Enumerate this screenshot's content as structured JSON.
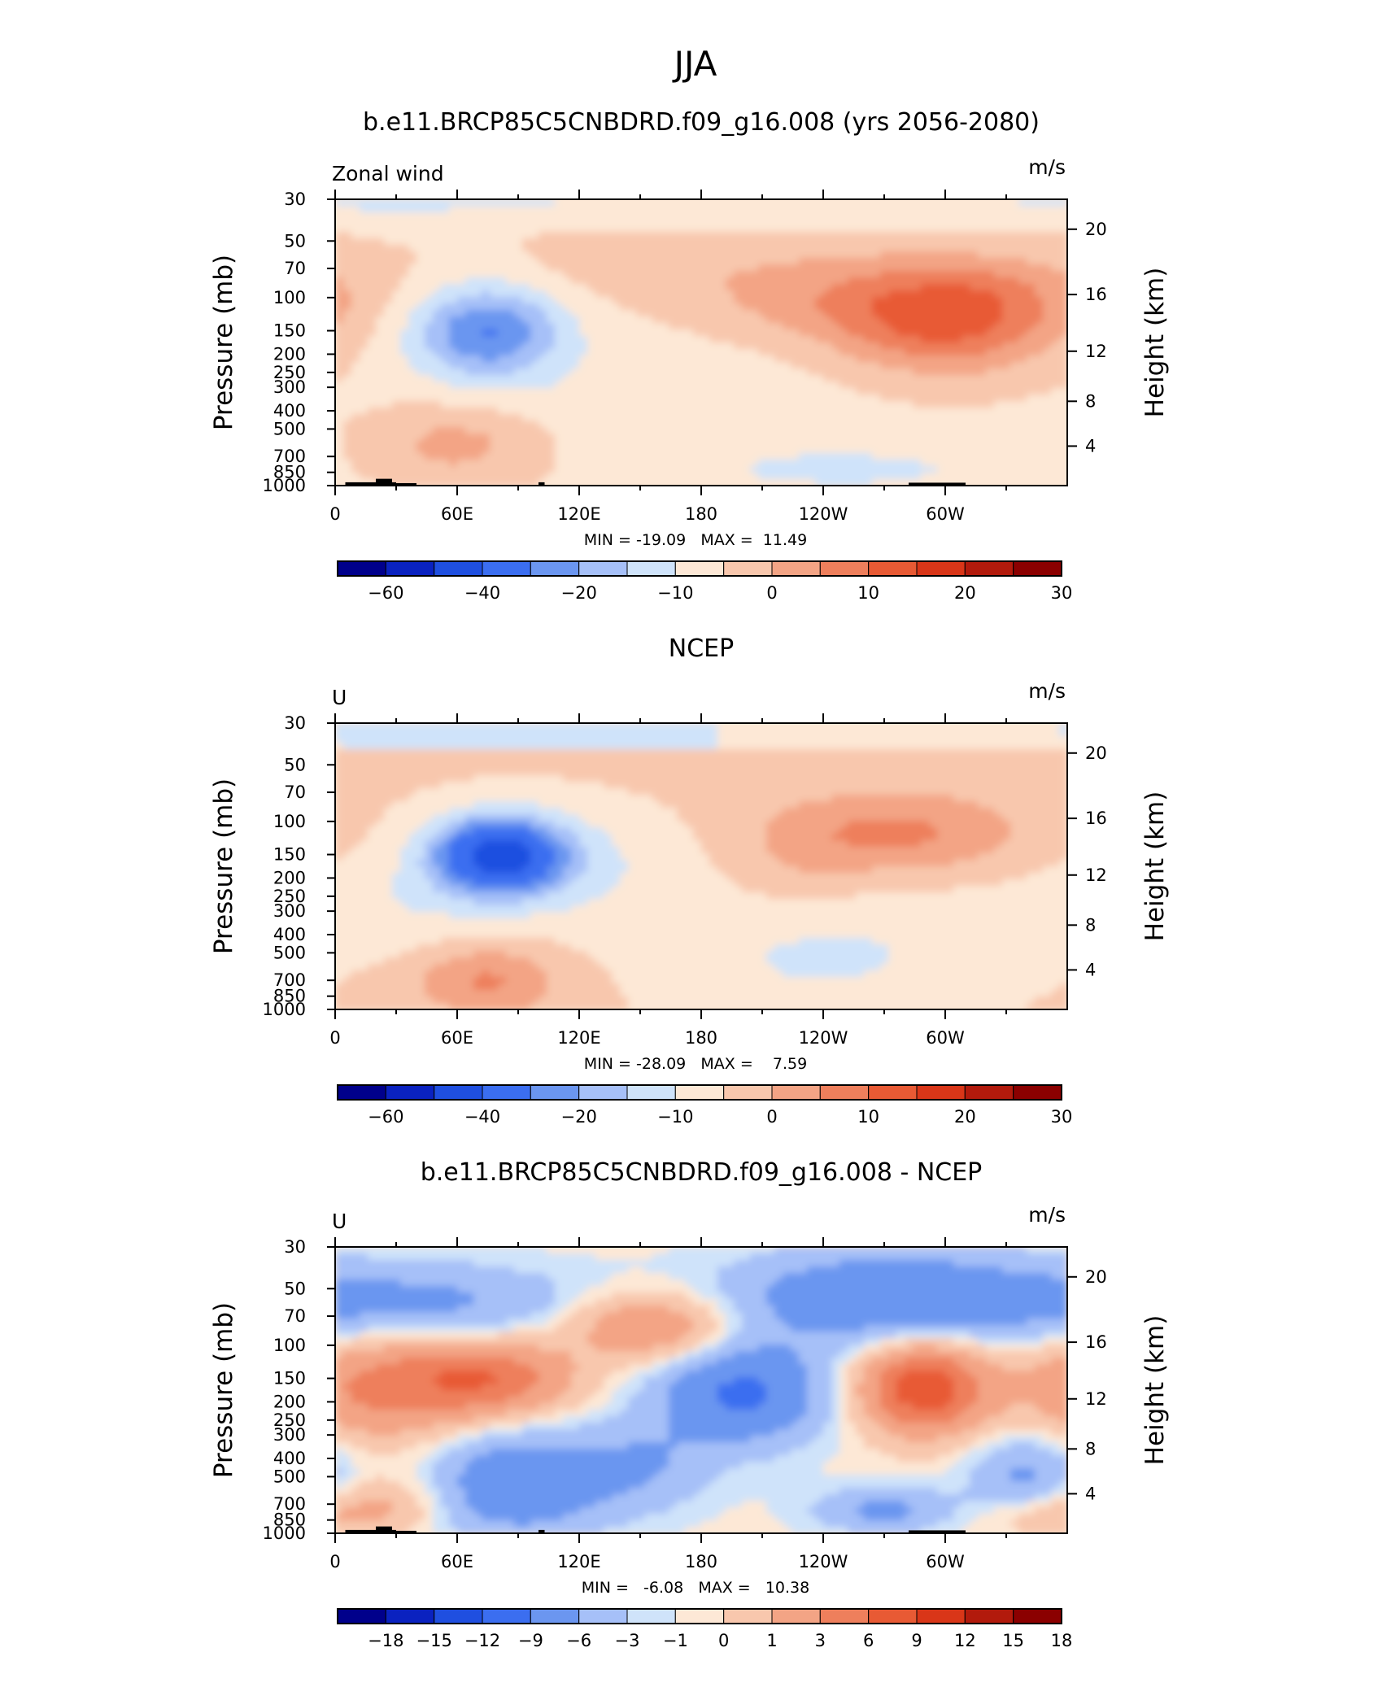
{
  "page": {
    "title": "JJA",
    "season": "JJA"
  },
  "axes_common": {
    "x_ticks": [
      "0",
      "60E",
      "120E",
      "180",
      "120W",
      "60W"
    ],
    "x_tick_lon": [
      0,
      60,
      120,
      180,
      240,
      300
    ],
    "pressure_ticks": [
      "30",
      "50",
      "70",
      "100",
      "150",
      "200",
      "250",
      "300",
      "400",
      "500",
      "700",
      "850",
      "1000"
    ],
    "pressure_values": [
      30,
      50,
      70,
      100,
      150,
      200,
      250,
      300,
      400,
      500,
      700,
      850,
      1000
    ],
    "height_ticks": [
      "20",
      "16",
      "12",
      "8",
      "4"
    ],
    "height_values_km": [
      20,
      16,
      12,
      8,
      4
    ],
    "ylabel_left": "Pressure (mb)",
    "ylabel_right": "Height (km)",
    "units": "m/s"
  },
  "chart_data": [
    {
      "type": "heatmap",
      "title": "b.e11.BRCP85C5CNBDRD.f09_g16.008 (yrs 2056-2080)",
      "corner_label": "Zonal wind",
      "units": "m/s",
      "stats": "MIN = -19.09   MAX =  11.49",
      "min": -19.09,
      "max": 11.49,
      "xlim": [
        0,
        360
      ],
      "ylim_mb": [
        1000,
        30
      ],
      "colorbar_labels": [
        "-60",
        "-40",
        "-20",
        "-10",
        "0",
        "10",
        "20",
        "30"
      ],
      "colorbar_levels": [
        -70,
        -60,
        -50,
        -40,
        -30,
        -20,
        -15,
        -10,
        -5,
        0,
        5,
        10,
        15,
        20,
        25,
        30,
        35,
        40
      ],
      "colorbar_label_indices": [
        1,
        3,
        5,
        7,
        9,
        11,
        13,
        15
      ],
      "features": [
        {
          "name": "easterly jet core",
          "lon": 75,
          "p_mb": 150,
          "value": -19.09
        },
        {
          "name": "westerly jet core",
          "lon": 300,
          "p_mb": 150,
          "value": 11.49
        }
      ]
    },
    {
      "type": "heatmap",
      "title": "NCEP",
      "corner_label": "U",
      "units": "m/s",
      "stats": "MIN = -28.09   MAX =    7.59",
      "min": -28.09,
      "max": 7.59,
      "xlim": [
        0,
        360
      ],
      "ylim_mb": [
        1000,
        30
      ],
      "colorbar_labels": [
        "-60",
        "-40",
        "-20",
        "-10",
        "0",
        "10",
        "20",
        "30"
      ],
      "colorbar_levels": [
        -70,
        -60,
        -50,
        -40,
        -30,
        -20,
        -15,
        -10,
        -5,
        0,
        5,
        10,
        15,
        20,
        25,
        30,
        35,
        40
      ],
      "colorbar_label_indices": [
        1,
        3,
        5,
        7,
        9,
        11,
        13,
        15
      ],
      "features": [
        {
          "name": "easterly jet core",
          "lon": 80,
          "p_mb": 150,
          "value": -28.09
        },
        {
          "name": "westerly jet core",
          "lon": 285,
          "p_mb": 120,
          "value": 7.59
        }
      ]
    },
    {
      "type": "heatmap",
      "title": "b.e11.BRCP85C5CNBDRD.f09_g16.008 - NCEP",
      "corner_label": "U",
      "units": "m/s",
      "stats": "MIN =   -6.08   MAX =   10.38",
      "min": -6.08,
      "max": 10.38,
      "xlim": [
        0,
        360
      ],
      "ylim_mb": [
        1000,
        30
      ],
      "colorbar_labels": [
        "-18",
        "-15",
        "-12",
        "-9",
        "-6",
        "-3",
        "-1",
        "0",
        "1",
        "3",
        "6",
        "9",
        "12",
        "15",
        "18"
      ],
      "colorbar_levels": [
        -21,
        -18,
        -15,
        -12,
        -9,
        -6,
        -3,
        -1,
        0,
        1,
        3,
        6,
        9,
        12,
        15,
        18,
        21
      ],
      "colorbar_label_indices": [
        1,
        2,
        3,
        4,
        5,
        6,
        7,
        8,
        9,
        10,
        11,
        12,
        13,
        14,
        15
      ],
      "features": [
        {
          "name": "positive difference max",
          "lon": 290,
          "p_mb": 170,
          "value": 10.38
        },
        {
          "name": "negative difference min",
          "lon": 200,
          "p_mb": 180,
          "value": -6.08
        }
      ]
    }
  ],
  "colors": {
    "palette": [
      "#00008b",
      "#0a22c0",
      "#1f4fe0",
      "#3b6ef0",
      "#6b96f0",
      "#a6c0f8",
      "#cfe3fa",
      "#fde8d6",
      "#f8c7ad",
      "#f3a485",
      "#ee7f5c",
      "#e85a34",
      "#d93618",
      "#b21a0c",
      "#8b0000"
    ],
    "topography": "#000000"
  }
}
